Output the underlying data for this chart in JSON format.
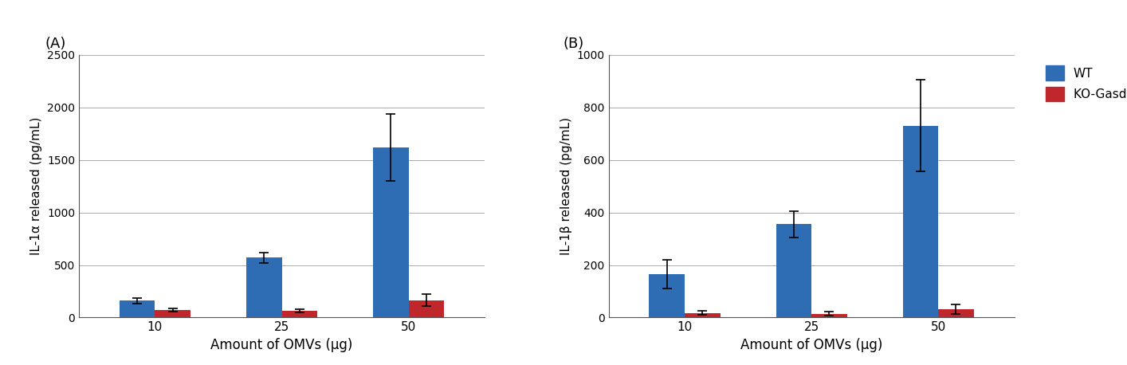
{
  "panel_A": {
    "label": "(A)",
    "ylabel": "IL-1α released (pg/mL)",
    "xlabel": "Amount of OMVs (μg)",
    "categories": [
      "10",
      "25",
      "50"
    ],
    "wt_values": [
      160,
      570,
      1620
    ],
    "wt_errors": [
      25,
      50,
      320
    ],
    "ko_values": [
      75,
      65,
      165
    ],
    "ko_errors": [
      15,
      15,
      55
    ],
    "ylim": [
      0,
      2500
    ],
    "yticks": [
      0,
      500,
      1000,
      1500,
      2000,
      2500
    ]
  },
  "panel_B": {
    "label": "(B)",
    "ylabel": "IL-1β released (pg/mL)",
    "xlabel": "Amount of OMVs (μg)",
    "categories": [
      "10",
      "25",
      "50"
    ],
    "wt_values": [
      165,
      355,
      730
    ],
    "wt_errors": [
      55,
      50,
      175
    ],
    "ko_values": [
      18,
      15,
      32
    ],
    "ko_errors": [
      8,
      8,
      18
    ],
    "ylim": [
      0,
      1000
    ],
    "yticks": [
      0,
      200,
      400,
      600,
      800,
      1000
    ]
  },
  "wt_color": "#2E6DB4",
  "ko_color": "#C0272D",
  "legend_labels": [
    "WT",
    "KO-Gasdermin D"
  ],
  "bar_width": 0.28,
  "figsize": [
    14.14,
    4.58
  ],
  "dpi": 100,
  "grid_color": "#aaaaaa",
  "grid_lw": 0.7
}
